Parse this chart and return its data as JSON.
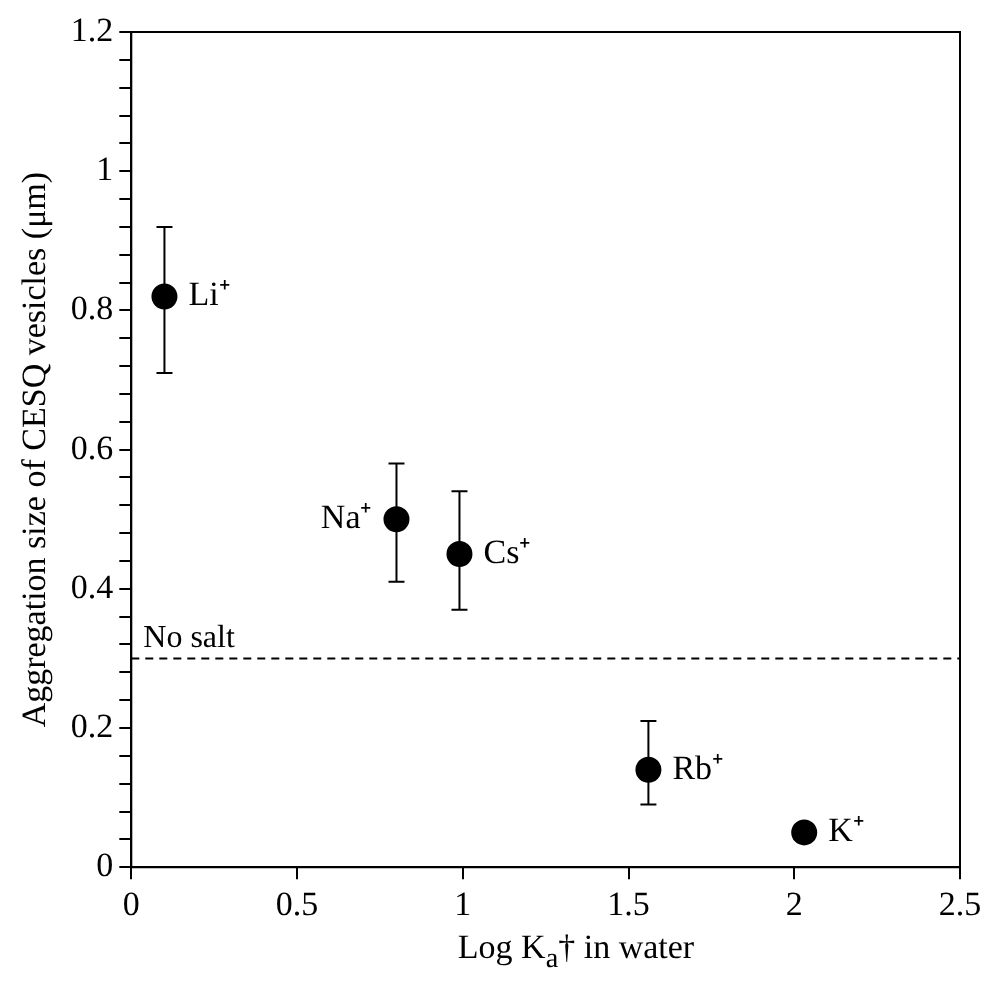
{
  "chart_data": {
    "type": "scatter",
    "xlabel": "Log K$_{a}$† in water",
    "ylabel": "Aggregation size of CESQ vesicles (μm)",
    "x": [
      0.1,
      0.8,
      0.99,
      1.56,
      2.03
    ],
    "series": [
      {
        "color": "#000000",
        "values": [
          0.82,
          0.5,
          0.45,
          0.14,
          0.05
        ],
        "errors": [
          [
            0.71,
            0.92
          ],
          [
            0.41,
            0.58
          ],
          [
            0.37,
            0.54
          ],
          [
            0.09,
            0.21
          ],
          null
        ]
      }
    ],
    "xlim": [
      0,
      2.5
    ],
    "xticks": [
      0,
      0.5,
      1,
      1.5,
      2,
      2.5
    ],
    "ylim": [
      0,
      1.2
    ],
    "yticks": [
      0,
      {
        "value": 0.04,
        "label": null
      },
      {
        "value": 0.08,
        "label": null
      },
      {
        "value": 0.12,
        "label": null
      },
      {
        "value": 0.16,
        "label": null
      },
      0.2,
      {
        "value": 0.24,
        "label": null
      },
      {
        "value": 0.28,
        "label": null
      },
      {
        "value": 0.32,
        "label": null
      },
      {
        "value": 0.36,
        "label": null
      },
      0.4,
      {
        "value": 0.44,
        "label": null
      },
      {
        "value": 0.48,
        "label": null
      },
      {
        "value": 0.52,
        "label": null
      },
      {
        "value": 0.56,
        "label": null
      },
      0.6,
      {
        "value": 0.64,
        "label": null
      },
      {
        "value": 0.68,
        "label": null
      },
      {
        "value": 0.72,
        "label": null
      },
      {
        "value": 0.76,
        "label": null
      },
      0.8,
      {
        "value": 0.84,
        "label": null
      },
      {
        "value": 0.88,
        "label": null
      },
      {
        "value": 0.92,
        "label": null
      },
      {
        "value": 0.96,
        "label": null
      },
      1,
      {
        "value": 1.04,
        "label": null
      },
      {
        "value": 1.08,
        "label": null
      },
      {
        "value": 1.12,
        "label": null
      },
      {
        "value": 1.16,
        "label": null
      },
      1.2
    ],
    "ref_lines": [
      {
        "axis": "y",
        "value": 0.3,
        "label": "No salt",
        "color": "#000000",
        "line_style": "dashed"
      }
    ],
    "annotations": [
      {
        "text": "Li⁺",
        "x": 0.1,
        "y": 0.82
      },
      {
        "text": "Na⁺",
        "x": 0.8,
        "y": 0.5
      },
      {
        "text": "Cs⁺",
        "x": 0.99,
        "y": 0.45
      },
      {
        "text": "Rb⁺",
        "x": 1.56,
        "y": 0.14
      },
      {
        "text": "K⁺",
        "x": 2.03,
        "y": 0.05
      }
    ],
    "grid": false,
    "legend": false,
    "marker": "circle"
  }
}
